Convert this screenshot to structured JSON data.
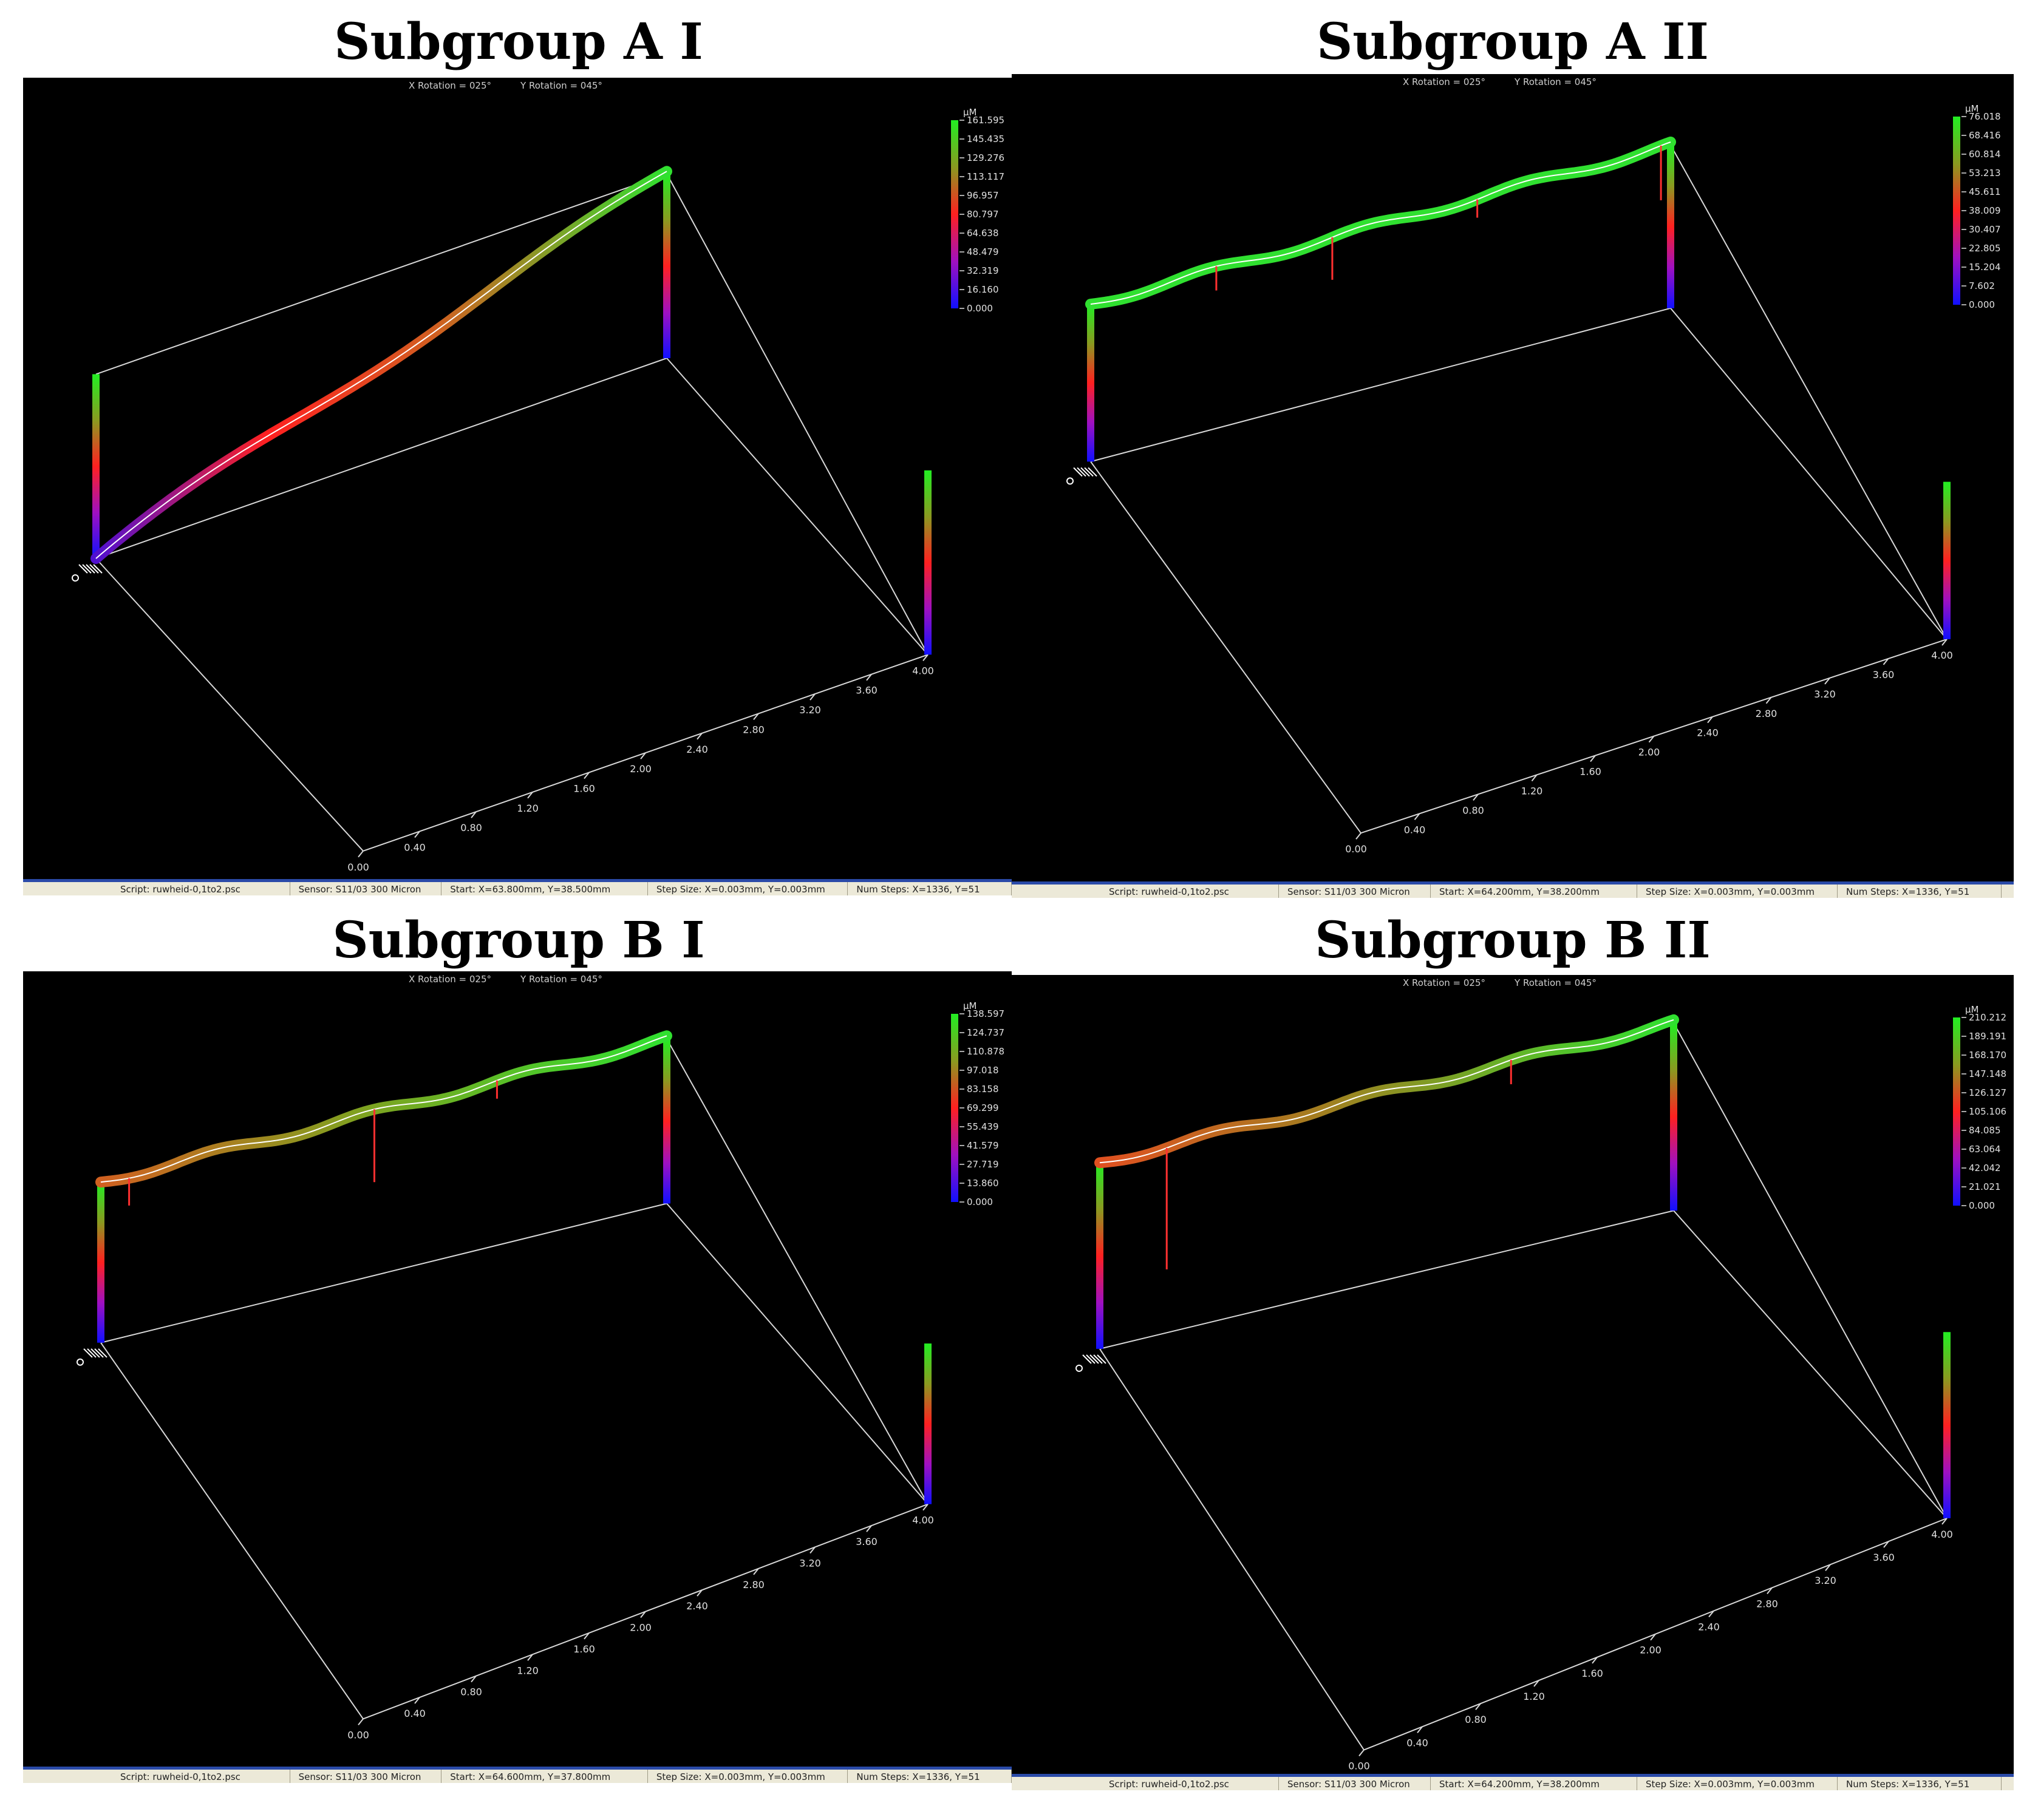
{
  "panels": [
    {
      "title": "Subgroup A I",
      "rotation": {
        "x": "X Rotation = 025°",
        "y": "Y Rotation = 045°"
      },
      "scale": {
        "unit": "µM",
        "ticks": [
          "161.595",
          "145.435",
          "129.276",
          "113.117",
          "96.957",
          "80.797",
          "64.638",
          "48.479",
          "32.319",
          "16.160",
          "0.000"
        ]
      },
      "axis_ticks": [
        "0.00",
        "0.40",
        "0.80",
        "1.20",
        "1.60",
        "2.00",
        "2.40",
        "2.80",
        "3.20",
        "3.60",
        "4.00"
      ],
      "status": [
        "Script: ruwheid-0,1to2.psc",
        "Sensor: S11/03   300 Micron",
        "Start: X=63.800mm, Y=38.500mm",
        "Step Size: X=0.003mm, Y=0.003mm",
        "Num Steps: X=1336, Y=51"
      ]
    },
    {
      "title": "Subgroup A II",
      "rotation": {
        "x": "X Rotation = 025°",
        "y": "Y Rotation = 045°"
      },
      "scale": {
        "unit": "µM",
        "ticks": [
          "76.018",
          "68.416",
          "60.814",
          "53.213",
          "45.611",
          "38.009",
          "30.407",
          "22.805",
          "15.204",
          "7.602",
          "0.000"
        ]
      },
      "axis_ticks": [
        "0.00",
        "0.40",
        "0.80",
        "1.20",
        "1.60",
        "2.00",
        "2.40",
        "2.80",
        "3.20",
        "3.60",
        "4.00"
      ],
      "status": [
        "Script: ruwheid-0,1to2.psc",
        "Sensor: S11/03   300 Micron",
        "Start: X=64.200mm, Y=38.200mm",
        "Step Size: X=0.003mm, Y=0.003mm",
        "Num Steps: X=1336, Y=51"
      ]
    },
    {
      "title": "Subgroup B I",
      "rotation": {
        "x": "X Rotation = 025°",
        "y": "Y Rotation = 045°"
      },
      "scale": {
        "unit": "µM",
        "ticks": [
          "138.597",
          "124.737",
          "110.878",
          "97.018",
          "83.158",
          "69.299",
          "55.439",
          "41.579",
          "27.719",
          "13.860",
          "0.000"
        ]
      },
      "axis_ticks": [
        "0.00",
        "0.40",
        "0.80",
        "1.20",
        "1.60",
        "2.00",
        "2.40",
        "2.80",
        "3.20",
        "3.60",
        "4.00"
      ],
      "status": [
        "Script: ruwheid-0,1to2.psc",
        "Sensor: S11/03   300 Micron",
        "Start: X=64.600mm, Y=37.800mm",
        "Step Size: X=0.003mm, Y=0.003mm",
        "Num Steps: X=1336, Y=51"
      ]
    },
    {
      "title": "Subgroup B II",
      "rotation": {
        "x": "X Rotation = 025°",
        "y": "Y Rotation = 045°"
      },
      "scale": {
        "unit": "µM",
        "ticks": [
          "210.212",
          "189.191",
          "168.170",
          "147.148",
          "126.127",
          "105.106",
          "84.085",
          "63.064",
          "42.042",
          "21.021",
          "0.000"
        ]
      },
      "axis_ticks": [
        "0.00",
        "0.40",
        "0.80",
        "1.20",
        "1.60",
        "2.00",
        "2.40",
        "2.80",
        "3.20",
        "3.60",
        "4.00"
      ],
      "status": [
        "Script: ruwheid-0,1to2.psc",
        "Sensor: S11/03   300 Micron",
        "Start: X=64.200mm, Y=38.200mm",
        "Step Size: X=0.003mm, Y=0.003mm",
        "Num Steps: X=1336, Y=51"
      ]
    }
  ]
}
